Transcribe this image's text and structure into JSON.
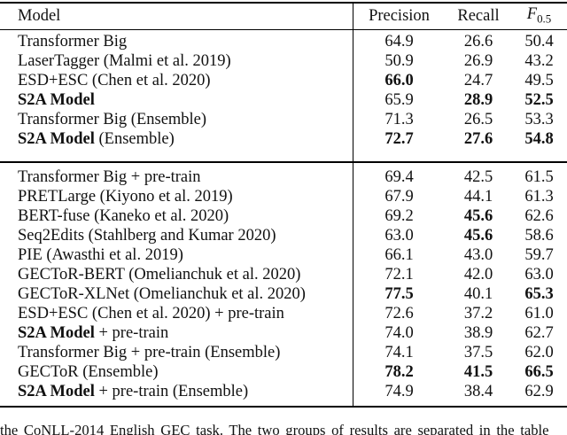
{
  "header": {
    "model": "Model",
    "precision": "Precision",
    "recall": "Recall",
    "f_label": "F",
    "f_sub": "0.5"
  },
  "sections": [
    {
      "rows": [
        {
          "model": [
            [
              "Transformer Big",
              false
            ]
          ],
          "values": [
            [
              "64.9",
              false
            ],
            [
              "26.6",
              false
            ],
            [
              "50.4",
              false
            ]
          ]
        },
        {
          "model": [
            [
              "LaserTagger (Malmi et al. 2019)",
              false
            ]
          ],
          "values": [
            [
              "50.9",
              false
            ],
            [
              "26.9",
              false
            ],
            [
              "43.2",
              false
            ]
          ]
        },
        {
          "model": [
            [
              "ESD+ESC (Chen et al. 2020)",
              false
            ]
          ],
          "values": [
            [
              "66.0",
              true
            ],
            [
              "24.7",
              false
            ],
            [
              "49.5",
              false
            ]
          ]
        },
        {
          "model": [
            [
              "S2A Model",
              true
            ]
          ],
          "values": [
            [
              "65.9",
              false
            ],
            [
              "28.9",
              true
            ],
            [
              "52.5",
              true
            ]
          ]
        },
        {
          "model": [
            [
              "Transformer Big (Ensemble)",
              false
            ]
          ],
          "values": [
            [
              "71.3",
              false
            ],
            [
              "26.5",
              false
            ],
            [
              "53.3",
              false
            ]
          ]
        },
        {
          "model": [
            [
              "S2A Model",
              true
            ],
            [
              " (Ensemble)",
              false
            ]
          ],
          "values": [
            [
              "72.7",
              true
            ],
            [
              "27.6",
              true
            ],
            [
              "54.8",
              true
            ]
          ]
        }
      ]
    },
    {
      "rows": [
        {
          "model": [
            [
              "Transformer Big + pre-train",
              false
            ]
          ],
          "values": [
            [
              "69.4",
              false
            ],
            [
              "42.5",
              false
            ],
            [
              "61.5",
              false
            ]
          ]
        },
        {
          "model": [
            [
              "PRETLarge (Kiyono et al. 2019)",
              false
            ]
          ],
          "values": [
            [
              "67.9",
              false
            ],
            [
              "44.1",
              false
            ],
            [
              "61.3",
              false
            ]
          ]
        },
        {
          "model": [
            [
              "BERT-fuse (Kaneko et al. 2020)",
              false
            ]
          ],
          "values": [
            [
              "69.2",
              false
            ],
            [
              "45.6",
              true
            ],
            [
              "62.6",
              false
            ]
          ]
        },
        {
          "model": [
            [
              "Seq2Edits (Stahlberg and Kumar 2020)",
              false
            ]
          ],
          "values": [
            [
              "63.0",
              false
            ],
            [
              "45.6",
              true
            ],
            [
              "58.6",
              false
            ]
          ]
        },
        {
          "model": [
            [
              "PIE (Awasthi et al. 2019)",
              false
            ]
          ],
          "values": [
            [
              "66.1",
              false
            ],
            [
              "43.0",
              false
            ],
            [
              "59.7",
              false
            ]
          ]
        },
        {
          "model": [
            [
              "GECToR-BERT (Omelianchuk et al. 2020)",
              false
            ]
          ],
          "values": [
            [
              "72.1",
              false
            ],
            [
              "42.0",
              false
            ],
            [
              "63.0",
              false
            ]
          ]
        },
        {
          "model": [
            [
              "GECToR-XLNet (Omelianchuk et al. 2020)",
              false
            ]
          ],
          "values": [
            [
              "77.5",
              true
            ],
            [
              "40.1",
              false
            ],
            [
              "65.3",
              true
            ]
          ]
        },
        {
          "model": [
            [
              "ESD+ESC (Chen et al. 2020) + pre-train",
              false
            ]
          ],
          "values": [
            [
              "72.6",
              false
            ],
            [
              "37.2",
              false
            ],
            [
              "61.0",
              false
            ]
          ]
        },
        {
          "model": [
            [
              "S2A Model",
              true
            ],
            [
              " + pre-train",
              false
            ]
          ],
          "values": [
            [
              "74.0",
              false
            ],
            [
              "38.9",
              false
            ],
            [
              "62.7",
              false
            ]
          ]
        },
        {
          "model": [
            [
              "Transformer Big + pre-train (Ensemble)",
              false
            ]
          ],
          "values": [
            [
              "74.1",
              false
            ],
            [
              "37.5",
              false
            ],
            [
              "62.0",
              false
            ]
          ]
        },
        {
          "model": [
            [
              "GECToR (Ensemble)",
              false
            ]
          ],
          "values": [
            [
              "78.2",
              true
            ],
            [
              "41.5",
              true
            ],
            [
              "66.5",
              true
            ]
          ]
        },
        {
          "model": [
            [
              "S2A Model",
              true
            ],
            [
              " + pre-train (Ensemble)",
              false
            ]
          ],
          "values": [
            [
              "74.9",
              false
            ],
            [
              "38.4",
              false
            ],
            [
              "62.9",
              false
            ]
          ]
        }
      ]
    }
  ],
  "caption": "the CoNLL-2014 English GEC task. The two groups of results are separated in the table",
  "colors": {
    "text": "#111111",
    "rule": "#000000",
    "background": "#ffffff"
  }
}
